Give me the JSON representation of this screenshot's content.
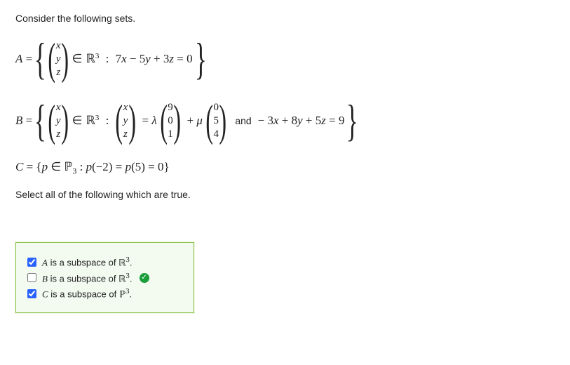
{
  "intro": "Consider the following sets.",
  "sets": {
    "A": {
      "name": "A",
      "vec": [
        "x",
        "y",
        "z"
      ],
      "in": "∈",
      "space": "ℝ",
      "space_sup": "3",
      "colon": ":",
      "condition_parts": [
        "7",
        "x",
        " − 5",
        "y",
        " + 3",
        "z",
        " = 0"
      ]
    },
    "B": {
      "name": "B",
      "vec": [
        "x",
        "y",
        "z"
      ],
      "in": "∈",
      "space": "ℝ",
      "space_sup": "3",
      "colon": ":",
      "vec2": [
        "x",
        "y",
        "z"
      ],
      "eq": "= λ",
      "num1": [
        "9",
        "0",
        "1"
      ],
      "plus": "+ μ",
      "num2": [
        "0",
        "5",
        "4"
      ],
      "and": "and",
      "cond2_parts": [
        " − 3",
        "x",
        " + 8",
        "y",
        " + 5",
        "z",
        " = 9"
      ]
    },
    "C": {
      "name": "C",
      "body_parts": [
        {
          "t": " = {",
          "it": false
        },
        {
          "t": "p",
          "it": true
        },
        {
          "t": " ∈ ",
          "it": false
        },
        {
          "t": "ℙ",
          "it": false,
          "bb": true
        },
        {
          "t": "3",
          "sub": true
        },
        {
          "t": " : ",
          "it": false
        },
        {
          "t": "p",
          "it": true
        },
        {
          "t": "(−2) = ",
          "it": false
        },
        {
          "t": "p",
          "it": true
        },
        {
          "t": "(5) = 0}",
          "it": false
        }
      ]
    }
  },
  "prompt": "Select all of the following which are true.",
  "options": [
    {
      "checked": true,
      "var": "A",
      "text_mid": " is a subspace of ",
      "space": "ℝ",
      "sup": "3",
      "period": ".",
      "tick": false
    },
    {
      "checked": false,
      "var": "B",
      "text_mid": " is a subspace of ",
      "space": "ℝ",
      "sup": "3",
      "period": ".",
      "tick": true
    },
    {
      "checked": true,
      "var": "C",
      "text_mid": " is a subspace of ",
      "space": "ℙ",
      "sup": "3",
      "period": ".",
      "tick": false
    }
  ],
  "colors": {
    "box_border": "#8bc34a",
    "box_bg": "#f3faf0",
    "tick_bg": "#1a9e3c",
    "checkbox_accent": "#2962ff",
    "text": "#222222"
  }
}
